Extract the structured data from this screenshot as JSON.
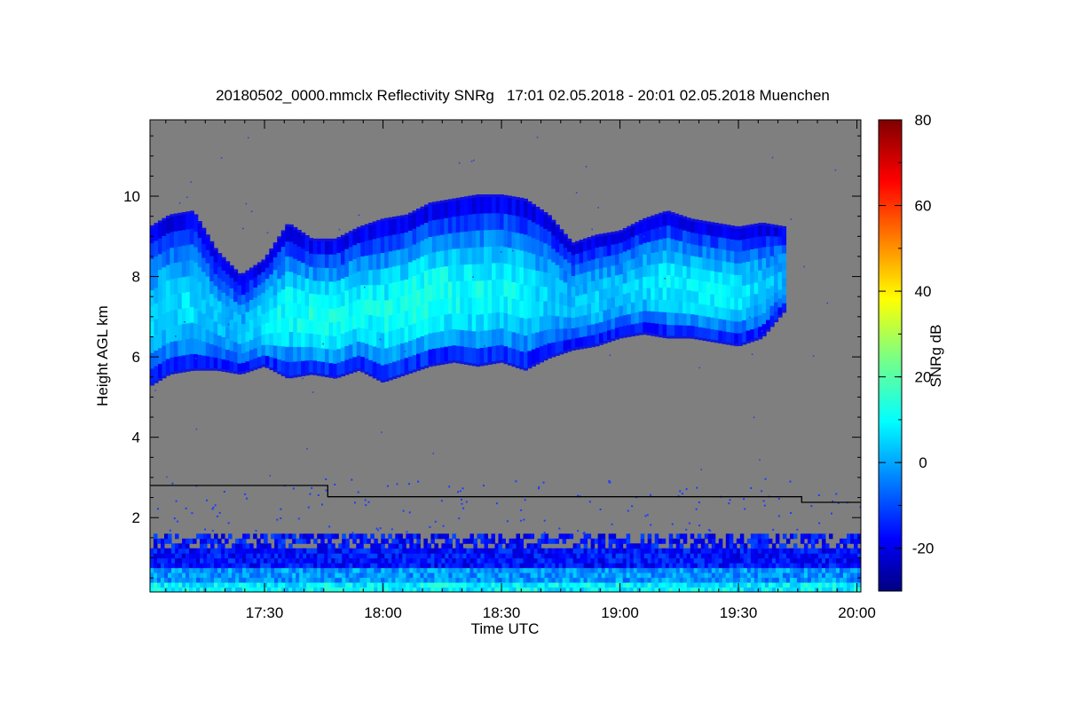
{
  "chart_data": {
    "type": "heatmap",
    "title": "20180502_0000.mmclx Reflectivity SNRg   17:01 02.05.2018 - 20:01 02.05.2018 Muenchen",
    "xlabel": "Time UTC",
    "ylabel": "Height AGL km",
    "colorbar_label": "SNRg dB",
    "x_tick_labels": [
      "17:30",
      "18:00",
      "18:30",
      "19:00",
      "19:30",
      "20:00"
    ],
    "x_tick_hours": [
      17.5,
      18.0,
      18.5,
      19.0,
      19.5,
      20.0
    ],
    "xlim_hours": [
      17.0167,
      20.0167
    ],
    "y_ticks": [
      2,
      4,
      6,
      8,
      10
    ],
    "ylim": [
      0.15,
      11.9
    ],
    "colorbar_ticks": [
      -20,
      0,
      20,
      40,
      60,
      80
    ],
    "colorbar_range": [
      -30,
      80
    ],
    "background_color": "#7f7f7f",
    "cloud_layer": {
      "time_hours": [
        17.0167,
        17.1,
        17.2,
        17.3,
        17.4,
        17.5,
        17.6,
        17.7,
        17.8,
        17.9,
        18.0,
        18.1,
        18.2,
        18.3,
        18.4,
        18.5,
        18.6,
        18.7,
        18.8,
        18.9,
        19.0,
        19.1,
        19.2,
        19.3,
        19.4,
        19.5,
        19.6,
        19.7
      ],
      "base_km": [
        5.3,
        5.6,
        5.7,
        5.7,
        5.6,
        5.8,
        5.5,
        5.6,
        5.5,
        5.7,
        5.4,
        5.6,
        5.8,
        5.9,
        5.8,
        5.9,
        5.7,
        6.0,
        6.2,
        6.3,
        6.5,
        6.6,
        6.5,
        6.5,
        6.4,
        6.3,
        6.5,
        7.2
      ],
      "top_km": [
        9.2,
        9.5,
        9.6,
        8.6,
        8.0,
        8.4,
        9.3,
        8.9,
        8.9,
        9.2,
        9.4,
        9.5,
        9.8,
        9.9,
        10.0,
        10.0,
        9.9,
        9.5,
        8.8,
        9.0,
        9.1,
        9.4,
        9.6,
        9.4,
        9.3,
        9.2,
        9.3,
        9.2
      ],
      "core_snr_db": [
        6,
        8,
        8,
        5,
        3,
        10,
        12,
        14,
        14,
        12,
        12,
        14,
        15,
        13,
        12,
        12,
        10,
        6,
        4,
        6,
        5,
        8,
        10,
        10,
        11,
        9,
        6,
        3
      ]
    },
    "boundary_line": {
      "time_hours": [
        17.0167,
        17.7667,
        17.7667,
        19.7667,
        19.7667,
        20.0167
      ],
      "height_km": [
        2.8,
        2.8,
        2.52,
        2.52,
        2.38,
        2.38
      ]
    },
    "near_surface_clutter_top_km": 1.6
  }
}
